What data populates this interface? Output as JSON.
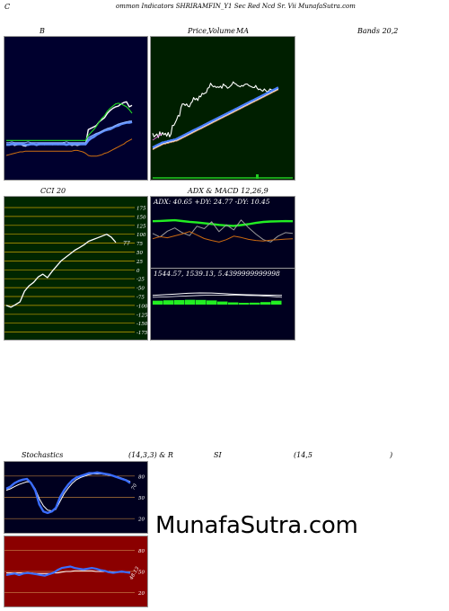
{
  "header": {
    "c_letter": "C",
    "title": "ommon  Indicators SHRIRAMFIN_Y1  Sec Red Ncd Sr. Vii  MunafaSutra.com"
  },
  "panels": {
    "bollinger": {
      "label": "B"
    },
    "price": {
      "label_a": "Price,",
      "label_b": "Volume",
      "label_c": "MA"
    },
    "bands": {
      "label": "Bands 20,2"
    },
    "cci": {
      "label": "CCI 20"
    },
    "adx_macd": {
      "label": "ADX  & MACD 12,26,9",
      "adx_text": "ADX: 40.65  +DY: 24.77 -DY: 10.45",
      "macd_text": "1544.57,  1539.13,  5.4399999999998"
    },
    "stoch_rsi": {
      "label_a": "Stochastics",
      "label_b": "(14,3,3) & R",
      "label_c": "SI",
      "label_d": "(14,5",
      "label_e": ")"
    }
  },
  "watermark": "MunafaSutra.com",
  "colors": {
    "bb_bg": "#00002e",
    "price_bg": "#001f00",
    "cci_bg": "#002600",
    "adx_bg": "#00001f",
    "stoch_bg": "#00001f",
    "rsi_bg": "#8b0000"
  },
  "chart_data": [
    {
      "id": "bollinger_bands",
      "type": "line",
      "title": "B",
      "series": [
        {
          "values": [
            151,
            151,
            149,
            152,
            151,
            150,
            152,
            153,
            151,
            150,
            149,
            152,
            151,
            150,
            151,
            150,
            150,
            151,
            150,
            151,
            150,
            148,
            151,
            150,
            152,
            151,
            152,
            151,
            150,
            151,
            130,
            128,
            126,
            124,
            119,
            116,
            113,
            107,
            103,
            100,
            98,
            97,
            94,
            92,
            91,
            98,
            96
          ]
        },
        {
          "values": [
            151,
            151,
            150,
            150,
            150,
            150,
            150,
            151,
            151,
            150,
            150,
            151,
            150,
            150,
            150,
            150,
            150,
            150,
            150,
            150,
            150,
            150,
            151,
            150,
            150,
            150,
            150,
            150,
            150,
            150,
            145,
            142,
            140,
            137,
            135,
            133,
            131,
            130,
            129,
            127,
            125,
            124,
            122,
            121,
            120,
            120,
            119
          ]
        },
        {
          "values": [
            148,
            148,
            147,
            148,
            148,
            148,
            148,
            148,
            147,
            148,
            148,
            148,
            148,
            148,
            148,
            148,
            148,
            148,
            148,
            148,
            148,
            148,
            147,
            148,
            148,
            148,
            148,
            148,
            148,
            148,
            141,
            139,
            137,
            135,
            134,
            132,
            130,
            128,
            127,
            126,
            124,
            122,
            121,
            120,
            119,
            118,
            118
          ]
        },
        {
          "values": [
            145,
            145,
            145,
            145,
            145,
            145,
            145,
            145,
            145,
            145,
            145,
            145,
            145,
            145,
            145,
            145,
            145,
            145,
            145,
            145,
            145,
            145,
            145,
            145,
            145,
            145,
            145,
            145,
            145,
            145,
            138,
            134,
            130,
            125,
            119,
            114,
            110,
            104,
            100,
            97,
            94,
            93,
            94,
            96,
            98,
            102,
            107
          ]
        },
        {
          "values": [
            166,
            165,
            164,
            163,
            162,
            161,
            161,
            160,
            160,
            160,
            160,
            160,
            160,
            160,
            160,
            160,
            160,
            160,
            160,
            160,
            160,
            160,
            160,
            160,
            160,
            159,
            159,
            160,
            161,
            163,
            166,
            167,
            167,
            167,
            166,
            165,
            163,
            162,
            160,
            158,
            156,
            154,
            152,
            150,
            147,
            145,
            143
          ]
        }
      ]
    },
    {
      "id": "price_volume_ma",
      "type": "line",
      "title": "Price, Volume MA",
      "series": [
        {
          "values": [
            135,
            140,
            138,
            136,
            141,
            133,
            138,
            134,
            137,
            135,
            139,
            134,
            140,
            136,
            124,
            124,
            120,
            116,
            110,
            111,
            99,
            94,
            94,
            96,
            94,
            97,
            98,
            93,
            91,
            85,
            88,
            86,
            89,
            83,
            84,
            79,
            80,
            79,
            78,
            72,
            71,
            65,
            68,
            70,
            69,
            71,
            70,
            71,
            69,
            72,
            66,
            68,
            69,
            72,
            71,
            69,
            67,
            63,
            65,
            66,
            68,
            69,
            70,
            68,
            69,
            67,
            66,
            66,
            68,
            69,
            70,
            71,
            71,
            68,
            72,
            74,
            73,
            75,
            76,
            73,
            75,
            77,
            76,
            73,
            74,
            75,
            76,
            75,
            72,
            72
          ]
        },
        {
          "values": [
            155,
            154,
            153,
            152,
            151,
            150,
            149,
            148,
            148,
            147,
            147,
            146,
            146,
            145,
            145,
            144,
            144,
            143,
            142,
            141,
            140,
            139,
            138,
            137,
            136,
            135,
            134,
            133,
            132,
            131,
            130,
            129,
            128,
            127,
            126,
            125,
            124,
            123,
            122,
            121,
            120,
            119,
            118,
            117,
            116,
            115,
            114,
            113,
            112,
            111,
            110,
            109,
            108,
            107,
            106,
            105,
            104,
            103,
            102,
            101,
            100,
            99,
            98,
            97,
            96,
            95,
            94,
            93,
            92,
            91,
            90,
            89,
            88,
            87,
            86,
            85,
            84,
            83,
            82,
            81,
            80,
            79,
            78,
            77,
            76,
            75,
            74,
            73,
            72,
            71
          ]
        },
        {
          "values": [
            157,
            156,
            155,
            154,
            153,
            152,
            151,
            150,
            149,
            149,
            148,
            148,
            147,
            147,
            146,
            146,
            145,
            145,
            144,
            143,
            142,
            141,
            140,
            139,
            138,
            137,
            136,
            135,
            134,
            133,
            132,
            131,
            130,
            129,
            128,
            127,
            126,
            125,
            124,
            123,
            122,
            121,
            120,
            119,
            118,
            117,
            116,
            115,
            114,
            113,
            112,
            111,
            110,
            109,
            108,
            107,
            106,
            105,
            104,
            103,
            102,
            101,
            100,
            99,
            98,
            97,
            96,
            95,
            94,
            93,
            92,
            91,
            90,
            89,
            88,
            87,
            86,
            85,
            84,
            83,
            82,
            81,
            80,
            79,
            78,
            77,
            76,
            75,
            74,
            73
          ]
        },
        {
          "values": [
            158,
            157,
            156,
            155,
            154,
            153,
            152,
            151,
            150,
            150,
            149,
            149,
            148,
            148,
            147,
            147,
            146,
            146,
            145,
            144,
            143,
            142,
            141,
            140,
            139,
            138,
            137,
            136,
            135,
            134,
            133,
            132,
            131,
            130,
            129,
            128,
            127,
            126,
            125,
            124,
            123,
            122,
            121,
            120,
            119,
            118,
            117,
            116,
            115,
            114,
            113,
            112,
            111,
            110,
            109,
            108,
            107,
            106,
            105,
            104,
            103,
            102,
            101,
            100,
            99,
            98,
            97,
            96,
            95,
            94,
            93,
            92,
            91,
            90,
            89,
            88,
            87,
            86,
            85,
            84,
            83,
            82,
            81,
            80,
            79,
            78,
            77,
            76,
            75,
            74
          ]
        },
        {
          "name": "Volume",
          "values": [
            0,
            0,
            0,
            0,
            0,
            0,
            0,
            0,
            0,
            0,
            0,
            0,
            0,
            0,
            0,
            0,
            0,
            0,
            0,
            0,
            0,
            0,
            0,
            0,
            0,
            0,
            0,
            0,
            0,
            0,
            0,
            0,
            0,
            0,
            0,
            0,
            0,
            0,
            0,
            0,
            0,
            0,
            0,
            0,
            0,
            0,
            0,
            0,
            0,
            0,
            0,
            0,
            0,
            0,
            0,
            0,
            0,
            0,
            0,
            0,
            0,
            0,
            0,
            0,
            0,
            0,
            0,
            0,
            0,
            0,
            0,
            0,
            0,
            0,
            0,
            0,
            0,
            0,
            0,
            0,
            0,
            0,
            0,
            0,
            0,
            0,
            0,
            0,
            0,
            0
          ]
        }
      ]
    },
    {
      "id": "cci",
      "type": "line",
      "title": "CCI 20",
      "y_ticks": [
        "175",
        "150",
        "125",
        "100",
        "75",
        "50",
        "25",
        "0",
        "-25",
        "-50",
        "-75",
        "-100",
        "-125",
        "-150",
        "-175"
      ],
      "value_label": "77",
      "series": [
        {
          "values": [
            -100,
            -105,
            -98,
            -90,
            -60,
            -45,
            -35,
            -20,
            -12,
            -22,
            -5,
            10,
            25,
            35,
            45,
            55,
            62,
            70,
            80,
            85,
            90,
            95,
            100,
            92,
            77
          ]
        }
      ]
    },
    {
      "id": "adx",
      "type": "line",
      "title": "ADX",
      "series": [
        {
          "name": "ADX",
          "values": [
            40.65,
            40.9,
            41.2,
            41.5,
            40.8,
            40.1,
            39.5,
            38.9,
            38.2,
            37.4,
            36.9,
            36.5,
            37.2,
            38.0,
            39.1,
            40.0,
            40.4,
            40.6,
            40.7,
            40.65
          ]
        },
        {
          "name": "+DY",
          "values": [
            24.77,
            22.1,
            26.5,
            28.9,
            25.4,
            23.2,
            30.1,
            28.3,
            33.5,
            26.1,
            31.2,
            27.4,
            34.8,
            29.1,
            24.3,
            20.2,
            18.5,
            22.8,
            25.4,
            24.77
          ]
        },
        {
          "name": "-DY",
          "values": [
            10.45,
            11.2,
            10.8,
            11.5,
            12.2,
            13.1,
            11.8,
            10.5,
            9.8,
            9.2,
            10.1,
            11.4,
            10.9,
            10.2,
            9.8,
            9.6,
            9.9,
            10.1,
            10.3,
            10.45
          ]
        }
      ]
    },
    {
      "id": "macd",
      "type": "line",
      "title": "MACD 12,26,9",
      "series": [
        {
          "values": [
            1544.57,
            1546.0,
            1547.5,
            1549.2,
            1550.0,
            1549.8,
            1548.5,
            1547.1,
            1546.0,
            1545.5,
            1545.0,
            1544.57
          ]
        },
        {
          "values": [
            1539.13,
            1540.0,
            1541.2,
            1542.5,
            1543.5,
            1544.0,
            1544.2,
            1544.0,
            1543.5,
            1542.8,
            1541.5,
            1539.13
          ]
        },
        {
          "values": [
            5.44,
            6.0,
            6.3,
            6.7,
            6.5,
            5.8,
            4.3,
            3.1,
            2.5,
            2.7,
            3.5,
            5.44
          ]
        }
      ]
    },
    {
      "id": "stochastics",
      "type": "line",
      "title": "Stochastics (14,3,3)",
      "y_ticks": [
        "80",
        "50",
        "20"
      ],
      "value_label": "70",
      "series": [
        {
          "values": [
            62,
            65,
            70,
            73,
            75,
            76,
            70,
            60,
            40,
            30,
            28,
            30,
            35,
            50,
            60,
            68,
            74,
            78,
            80,
            82,
            84,
            84,
            85,
            84,
            83,
            82,
            80,
            78,
            76,
            74,
            70
          ]
        },
        {
          "values": [
            60,
            62,
            65,
            68,
            70,
            72,
            71,
            62,
            48,
            38,
            32,
            31,
            33,
            44,
            55,
            63,
            70,
            75,
            78,
            80,
            82,
            83,
            83,
            83,
            82,
            81,
            80,
            79,
            77,
            75,
            72
          ]
        }
      ]
    },
    {
      "id": "rsi",
      "type": "line",
      "title": "RSI (14,5)",
      "y_ticks": [
        "80",
        "50",
        "20"
      ],
      "value_label": "48.13",
      "series": [
        {
          "values": [
            45,
            46,
            47,
            45,
            47,
            48,
            47,
            46,
            45,
            44,
            46,
            48,
            52,
            55,
            56,
            57,
            55,
            54,
            53,
            54,
            55,
            54,
            52,
            51,
            49,
            48,
            49,
            50,
            49,
            48.13
          ]
        },
        {
          "values": [
            48,
            48,
            48,
            48,
            48,
            48,
            48,
            47,
            47,
            47,
            47,
            48,
            48,
            49,
            50,
            50,
            51,
            51,
            51,
            51,
            51,
            50,
            50,
            50,
            50,
            49,
            49,
            49,
            49,
            49
          ]
        }
      ]
    }
  ]
}
